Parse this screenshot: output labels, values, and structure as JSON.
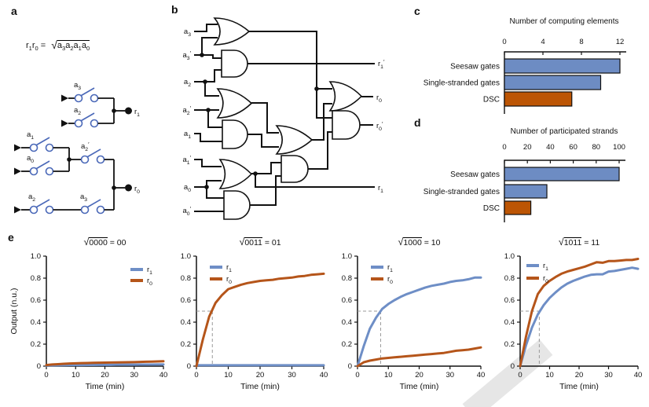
{
  "panel_letters": {
    "a": "a",
    "b": "b",
    "c": "c",
    "d": "d",
    "e": "e"
  },
  "colors": {
    "blue": "#6e8ec6",
    "orange": "#b5551a",
    "bar_blue": "#6d8cc3",
    "bar_orange": "#bc5504",
    "switch_blue": "#4a68b8",
    "guide_gray": "#999999",
    "axis_black": "#111111"
  },
  "panel_a": {
    "formula": {
      "lhs": [
        "r1",
        "r0"
      ],
      "eq": "=",
      "sqrt_sign": "√",
      "radicand": [
        "a3",
        "a2",
        "a1",
        "a0"
      ]
    },
    "switches": {
      "r1_branch": [
        "a3",
        "a2"
      ],
      "r0_parallel": [
        "a1",
        "a0"
      ],
      "r0_series_mid": [
        "a2'"
      ],
      "r0_series_bottom": [
        "a2",
        "a3"
      ]
    },
    "outputs": [
      "r1",
      "r0"
    ]
  },
  "panel_b": {
    "inputs": [
      "a3",
      "a3'",
      "a2",
      "a2'",
      "a1",
      "a1'",
      "a0",
      "a0'"
    ],
    "outputs": [
      "r1'",
      "r0",
      "r0'",
      "r1"
    ],
    "gates": [
      "OR",
      "AND",
      "OR",
      "AND",
      "OR",
      "AND",
      "OR",
      "AND",
      "OR",
      "AND"
    ]
  },
  "chart_data": [
    {
      "id": "c",
      "type": "bar",
      "orientation": "horizontal",
      "title": "Number of computing elements",
      "categories": [
        "Seesaw gates",
        "Single-stranded gates",
        "DSC"
      ],
      "values": [
        12,
        10,
        7
      ],
      "bar_colors": [
        "bar_blue",
        "bar_blue",
        "bar_orange"
      ],
      "xlim": [
        0,
        12
      ],
      "xticks": [
        0,
        4,
        8,
        12
      ]
    },
    {
      "id": "d",
      "type": "bar",
      "orientation": "horizontal",
      "title": "Number of participated strands",
      "categories": [
        "Seesaw gates",
        "Single-stranded gates",
        "DSC"
      ],
      "values": [
        100,
        37,
        23
      ],
      "bar_colors": [
        "bar_blue",
        "bar_blue",
        "bar_orange"
      ],
      "xlim": [
        0,
        100
      ],
      "xticks": [
        0,
        20,
        40,
        60,
        80,
        100
      ]
    },
    {
      "id": "e1",
      "type": "line",
      "title": {
        "sqrt_sign": "√",
        "radicand": "0000",
        "result": "00"
      },
      "xlabel": "Time (min)",
      "ylabel": "Output (n.u.)",
      "xlim": [
        0,
        40
      ],
      "ylim": [
        0,
        1
      ],
      "xticks": [
        0,
        10,
        20,
        30,
        40
      ],
      "yticks": [
        0,
        0.2,
        0.4,
        0.6,
        0.8,
        1.0
      ],
      "ytick_labels": [
        "0",
        "0.2",
        "0.4",
        "0.6",
        "0.8",
        "1.0"
      ],
      "legend": [
        {
          "label": "r1",
          "color": "blue"
        },
        {
          "label": "r0",
          "color": "orange"
        }
      ],
      "legend_pos": "right",
      "dashed_guide": null,
      "series": [
        {
          "name": "r1",
          "color": "blue",
          "x": [
            0,
            2,
            4,
            6,
            8,
            10,
            12,
            14,
            16,
            18,
            20,
            22,
            24,
            26,
            28,
            30,
            32,
            34,
            36,
            38,
            40
          ],
          "y": [
            0.005,
            0.007,
            0.008,
            0.009,
            0.01,
            0.01,
            0.01,
            0.011,
            0.011,
            0.012,
            0.012,
            0.012,
            0.013,
            0.013,
            0.013,
            0.013,
            0.014,
            0.014,
            0.014,
            0.015,
            0.015
          ]
        },
        {
          "name": "r0",
          "color": "orange",
          "x": [
            0,
            2,
            4,
            6,
            8,
            10,
            12,
            14,
            16,
            18,
            20,
            22,
            24,
            26,
            28,
            30,
            32,
            34,
            36,
            38,
            40
          ],
          "y": [
            0.01,
            0.015,
            0.018,
            0.021,
            0.024,
            0.026,
            0.028,
            0.029,
            0.03,
            0.031,
            0.032,
            0.033,
            0.034,
            0.035,
            0.036,
            0.037,
            0.038,
            0.04,
            0.041,
            0.043,
            0.045
          ]
        }
      ]
    },
    {
      "id": "e2",
      "type": "line",
      "title": {
        "sqrt_sign": "√",
        "radicand": "0011",
        "result": "01"
      },
      "xlabel": "Time (min)",
      "ylabel": null,
      "xlim": [
        0,
        40
      ],
      "ylim": [
        0,
        1
      ],
      "xticks": [
        0,
        10,
        20,
        30,
        40
      ],
      "yticks": [
        0,
        0.2,
        0.4,
        0.6,
        0.8,
        1.0
      ],
      "ytick_labels": [
        "0",
        "0.2",
        "0.4",
        "0.6",
        "0.8",
        "1.0"
      ],
      "legend": [
        {
          "label": "r1",
          "color": "blue"
        },
        {
          "label": "r0",
          "color": "orange"
        }
      ],
      "legend_pos": "left",
      "dashed_guide": {
        "x": 5,
        "y": 0.5
      },
      "series": [
        {
          "name": "r1",
          "color": "blue",
          "x": [
            0,
            2,
            4,
            6,
            8,
            10,
            12,
            14,
            16,
            18,
            20,
            22,
            24,
            26,
            28,
            30,
            32,
            34,
            36,
            38,
            40
          ],
          "y": [
            0.008,
            0.008,
            0.008,
            0.008,
            0.008,
            0.008,
            0.008,
            0.008,
            0.008,
            0.008,
            0.008,
            0.008,
            0.008,
            0.008,
            0.008,
            0.008,
            0.008,
            0.008,
            0.008,
            0.008,
            0.008
          ]
        },
        {
          "name": "r0",
          "color": "orange",
          "x": [
            0,
            2,
            4,
            6,
            8,
            10,
            12,
            14,
            16,
            18,
            20,
            22,
            24,
            26,
            28,
            30,
            32,
            34,
            36,
            38,
            40
          ],
          "y": [
            0,
            0.24,
            0.45,
            0.575,
            0.645,
            0.7,
            0.72,
            0.74,
            0.755,
            0.765,
            0.775,
            0.78,
            0.785,
            0.795,
            0.8,
            0.805,
            0.815,
            0.82,
            0.83,
            0.835,
            0.84
          ]
        }
      ]
    },
    {
      "id": "e3",
      "type": "line",
      "title": {
        "sqrt_sign": "√",
        "radicand": "1000",
        "result": "10"
      },
      "xlabel": "Time (min)",
      "ylabel": null,
      "xlim": [
        0,
        40
      ],
      "ylim": [
        0,
        1
      ],
      "xticks": [
        0,
        10,
        20,
        30,
        40
      ],
      "yticks": [
        0,
        0.2,
        0.4,
        0.6,
        0.8,
        1.0
      ],
      "ytick_labels": [
        "0",
        "0.2",
        "0.4",
        "0.6",
        "0.8",
        "1.0"
      ],
      "legend": [
        {
          "label": "r1",
          "color": "blue"
        },
        {
          "label": "r0",
          "color": "orange"
        }
      ],
      "legend_pos": "left",
      "dashed_guide": {
        "x": 7.5,
        "y": 0.5
      },
      "series": [
        {
          "name": "r1",
          "color": "blue",
          "x": [
            0,
            2,
            4,
            6,
            8,
            10,
            12,
            14,
            16,
            18,
            20,
            22,
            24,
            26,
            28,
            30,
            32,
            34,
            36,
            38,
            40
          ],
          "y": [
            0,
            0.18,
            0.34,
            0.44,
            0.52,
            0.565,
            0.6,
            0.63,
            0.655,
            0.675,
            0.695,
            0.715,
            0.73,
            0.74,
            0.75,
            0.765,
            0.775,
            0.78,
            0.79,
            0.805,
            0.805
          ]
        },
        {
          "name": "r0",
          "color": "orange",
          "x": [
            0,
            2,
            4,
            6,
            8,
            10,
            12,
            14,
            16,
            18,
            20,
            22,
            24,
            26,
            28,
            30,
            32,
            34,
            36,
            38,
            40
          ],
          "y": [
            0,
            0.035,
            0.05,
            0.06,
            0.07,
            0.075,
            0.08,
            0.085,
            0.09,
            0.095,
            0.1,
            0.105,
            0.11,
            0.115,
            0.12,
            0.13,
            0.14,
            0.145,
            0.15,
            0.16,
            0.17
          ]
        }
      ]
    },
    {
      "id": "e4",
      "type": "line",
      "title": {
        "sqrt_sign": "√",
        "radicand": "1011",
        "result": "11"
      },
      "xlabel": "Time (min)",
      "ylabel": null,
      "xlim": [
        0,
        40
      ],
      "ylim": [
        0,
        1
      ],
      "xticks": [
        0,
        10,
        20,
        30,
        40
      ],
      "yticks": [
        0,
        0.2,
        0.4,
        0.6,
        0.8,
        1.0
      ],
      "ytick_labels": [
        "0",
        "0.2",
        "0.4",
        "0.6",
        "0.8",
        "1.0"
      ],
      "legend": [
        {
          "label": "r1",
          "color": "blue"
        },
        {
          "label": "r0",
          "color": "orange"
        }
      ],
      "legend_pos": "left",
      "dashed_guide": {
        "x": 6.5,
        "y": 0.5
      },
      "series": [
        {
          "name": "r1",
          "color": "blue",
          "x": [
            0,
            2,
            4,
            6,
            8,
            10,
            12,
            14,
            16,
            18,
            20,
            22,
            24,
            26,
            28,
            30,
            32,
            34,
            36,
            38,
            40
          ],
          "y": [
            0,
            0.19,
            0.35,
            0.47,
            0.555,
            0.62,
            0.67,
            0.715,
            0.75,
            0.775,
            0.795,
            0.815,
            0.83,
            0.835,
            0.835,
            0.86,
            0.865,
            0.875,
            0.885,
            0.895,
            0.885
          ]
        },
        {
          "name": "r0",
          "color": "orange",
          "x": [
            0,
            2,
            4,
            6,
            8,
            10,
            12,
            14,
            16,
            18,
            20,
            22,
            24,
            26,
            28,
            30,
            32,
            34,
            36,
            38,
            40
          ],
          "y": [
            0,
            0.27,
            0.5,
            0.655,
            0.73,
            0.775,
            0.81,
            0.84,
            0.86,
            0.875,
            0.89,
            0.905,
            0.925,
            0.945,
            0.94,
            0.955,
            0.955,
            0.96,
            0.965,
            0.965,
            0.975
          ]
        }
      ]
    }
  ]
}
